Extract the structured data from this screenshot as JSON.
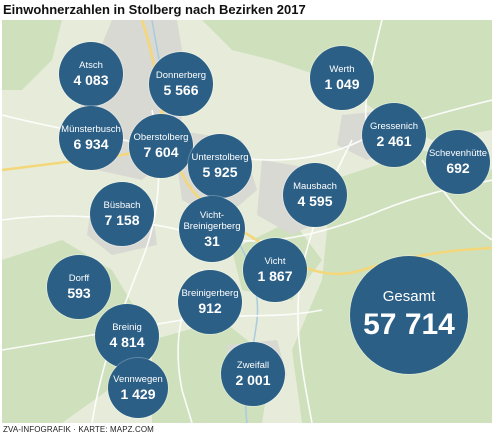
{
  "title": "Einwohnerzahlen in Stolberg nach Bezirken 2017",
  "credit": "ZVA-INFOGRAFIK · KARTE: MAPZ.COM",
  "colors": {
    "bubble": "#2b5f86",
    "forest": "#cfe0bd",
    "urban": "#d9d9d4",
    "road_major": "#f4d77a",
    "road_minor": "#ffffff"
  },
  "districts": [
    {
      "name": "Atsch",
      "value": "4 083"
    },
    {
      "name": "Donnerberg",
      "value": "5 566"
    },
    {
      "name": "Werth",
      "value": "1 049"
    },
    {
      "name": "Münsterbusch",
      "value": "6 934"
    },
    {
      "name": "Oberstolberg",
      "value": "7 604"
    },
    {
      "name": "Gressenich",
      "value": "2 461"
    },
    {
      "name": "Schevenhütte",
      "value": "692"
    },
    {
      "name": "Unterstolberg",
      "value": "5 925"
    },
    {
      "name": "Büsbach",
      "value": "7 158"
    },
    {
      "name": "Mausbach",
      "value": "4 595"
    },
    {
      "name": "Vicht-\nBreinigerberg",
      "value": "31"
    },
    {
      "name": "Vicht",
      "value": "1 867"
    },
    {
      "name": "Dorff",
      "value": "593"
    },
    {
      "name": "Breinigerberg",
      "value": "912"
    },
    {
      "name": "Breinig",
      "value": "4 814"
    },
    {
      "name": "Zweifall",
      "value": "2 001"
    },
    {
      "name": "Vennwegen",
      "value": "1 429"
    }
  ],
  "total": {
    "name": "Gesamt",
    "value": "57 714"
  }
}
